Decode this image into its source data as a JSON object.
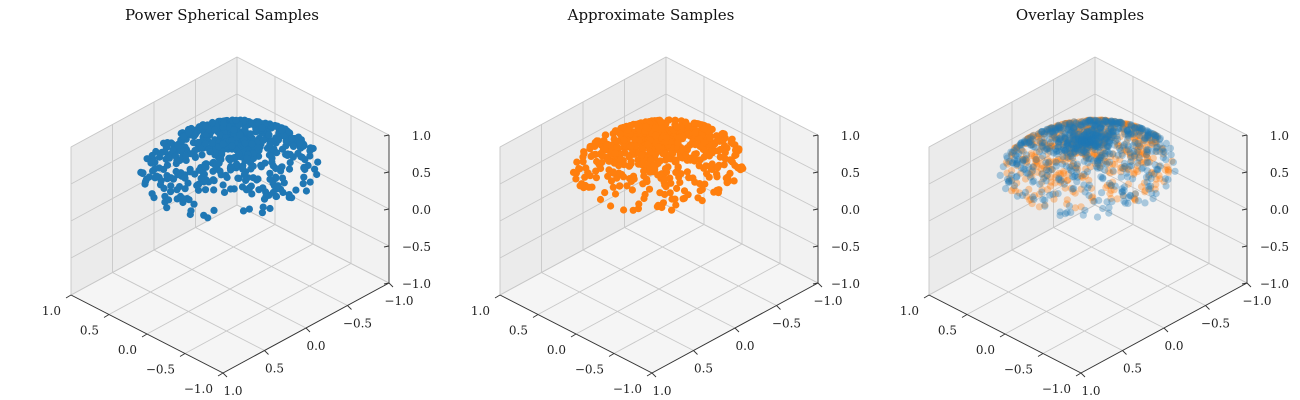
{
  "chart_data": [
    {
      "type": "scatter",
      "projection": "3d",
      "title": "Power Spherical Samples",
      "xlim": [
        -1.0,
        1.0
      ],
      "ylim": [
        -1.0,
        1.0
      ],
      "zlim": [
        -1.0,
        1.0
      ],
      "x_ticks": [
        "1.0",
        "0.5",
        "0.0",
        "−0.5",
        "−1.0"
      ],
      "y_ticks": [
        "1.0",
        "0.5",
        "0.0",
        "−0.5",
        "−1.0"
      ],
      "z_ticks": [
        "1.0",
        "0.5",
        "0.0",
        "−0.5",
        "−1.0"
      ],
      "grid": true,
      "series": [
        {
          "color": "#1f77b4",
          "alpha": 1.0,
          "distribution": "cap-around-+z",
          "z_range": [
            0.6,
            1.0
          ]
        }
      ]
    },
    {
      "type": "scatter",
      "projection": "3d",
      "title": "Approximate Samples",
      "xlim": [
        -1.0,
        1.0
      ],
      "ylim": [
        -1.0,
        1.0
      ],
      "zlim": [
        -1.0,
        1.0
      ],
      "x_ticks": [
        "1.0",
        "0.5",
        "0.0",
        "−0.5",
        "−1.0"
      ],
      "y_ticks": [
        "1.0",
        "0.5",
        "0.0",
        "−0.5",
        "−1.0"
      ],
      "z_ticks": [
        "1.0",
        "0.5",
        "0.0",
        "−0.5",
        "−1.0"
      ],
      "grid": true,
      "series": [
        {
          "color": "#ff7f0e",
          "alpha": 1.0,
          "distribution": "cap-around-+z",
          "z_range": [
            0.65,
            1.0
          ]
        }
      ]
    },
    {
      "type": "scatter",
      "projection": "3d",
      "title": "Overlay Samples",
      "xlim": [
        -1.0,
        1.0
      ],
      "ylim": [
        -1.0,
        1.0
      ],
      "zlim": [
        -1.0,
        1.0
      ],
      "x_ticks": [
        "1.0",
        "0.5",
        "0.0",
        "−0.5",
        "−1.0"
      ],
      "y_ticks": [
        "1.0",
        "0.5",
        "0.0",
        "−0.5",
        "−1.0"
      ],
      "z_ticks": [
        "1.0",
        "0.5",
        "0.0",
        "−0.5",
        "−1.0"
      ],
      "grid": true,
      "series": [
        {
          "color": "#ff7f0e",
          "alpha": 0.35,
          "distribution": "cap-around-+z",
          "z_range": [
            0.65,
            1.0
          ]
        },
        {
          "color": "#1f77b4",
          "alpha": 0.35,
          "distribution": "cap-around-+z",
          "z_range": [
            0.6,
            1.0
          ]
        }
      ]
    }
  ]
}
